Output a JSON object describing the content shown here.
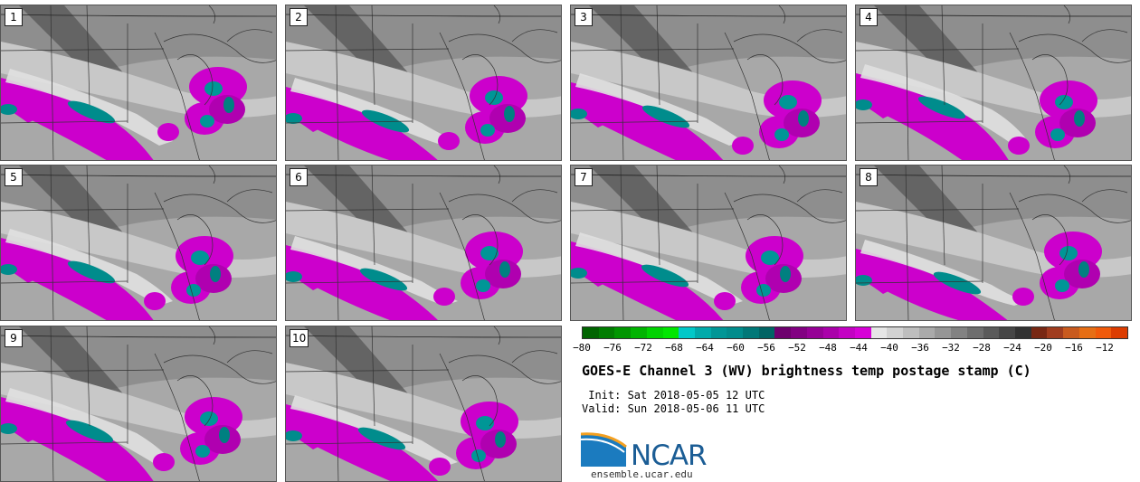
{
  "panels": [
    {
      "label": "1",
      "storm_cx": 240,
      "storm_cy": 110,
      "band_shift": 0
    },
    {
      "label": "2",
      "storm_cx": 235,
      "storm_cy": 120,
      "band_shift": 10
    },
    {
      "label": "3",
      "storm_cx": 245,
      "storm_cy": 125,
      "band_shift": 5
    },
    {
      "label": "4",
      "storm_cx": 235,
      "storm_cy": 125,
      "band_shift": -5
    },
    {
      "label": "5",
      "storm_cx": 225,
      "storm_cy": 120,
      "band_shift": 0
    },
    {
      "label": "6",
      "storm_cx": 230,
      "storm_cy": 115,
      "band_shift": 8
    },
    {
      "label": "7",
      "storm_cx": 225,
      "storm_cy": 120,
      "band_shift": 4
    },
    {
      "label": "8",
      "storm_cx": 240,
      "storm_cy": 115,
      "band_shift": 12
    },
    {
      "label": "9",
      "storm_cx": 235,
      "storm_cy": 120,
      "band_shift": -2
    },
    {
      "label": "10",
      "storm_cx": 225,
      "storm_cy": 125,
      "band_shift": 6
    }
  ],
  "colorbar": {
    "colors": [
      "#006400",
      "#007d00",
      "#009600",
      "#00b400",
      "#00d200",
      "#00e600",
      "#00c8c8",
      "#00aaaa",
      "#009696",
      "#008c8c",
      "#007878",
      "#006464",
      "#6e006e",
      "#820082",
      "#960096",
      "#aa00aa",
      "#c300c3",
      "#d700d7",
      "#e6e6e6",
      "#d2d2d2",
      "#bebebe",
      "#aaaaaa",
      "#969696",
      "#828282",
      "#6e6e6e",
      "#5a5a5a",
      "#464646",
      "#323232",
      "#782814",
      "#a03c1e",
      "#c85a1e",
      "#e66e14",
      "#f05a0a",
      "#dc3c00"
    ],
    "ticks": [
      "−80",
      "−76",
      "−72",
      "−68",
      "−64",
      "−60",
      "−56",
      "−52",
      "−48",
      "−44",
      "−40",
      "−36",
      "−32",
      "−28",
      "−24",
      "−20",
      "−16",
      "−12"
    ]
  },
  "title": "GOES-E Channel 3 (WV) brightness temp postage stamp (C)",
  "init_text": " Init: Sat 2018-05-05 12 UTC",
  "valid_text": "Valid: Sun 2018-05-06 11 UTC",
  "logo": {
    "name": "NCAR",
    "url": "ensemble.ucar.edu"
  }
}
